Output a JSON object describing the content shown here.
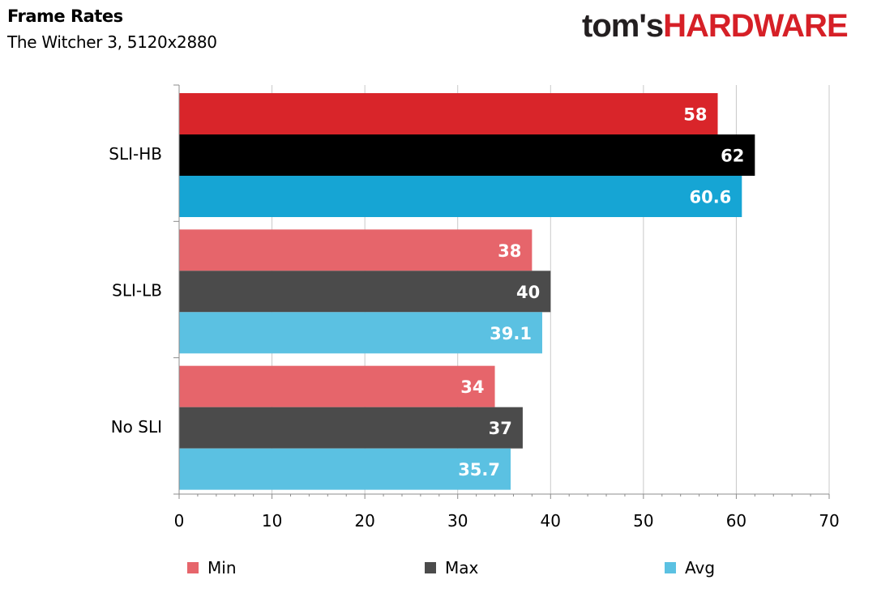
{
  "header": {
    "title": "Frame Rates",
    "subtitle": "The Witcher 3, 5120x2880"
  },
  "logo": {
    "part1": "tom's",
    "part2": "HARDWARE"
  },
  "chart_data": {
    "type": "bar",
    "orientation": "horizontal",
    "categories": [
      "SLI-HB",
      "SLI-LB",
      "No SLI"
    ],
    "series": [
      {
        "name": "Min",
        "values": [
          58,
          38,
          34
        ]
      },
      {
        "name": "Max",
        "values": [
          62,
          40,
          37
        ]
      },
      {
        "name": "Avg",
        "values": [
          60.6,
          39.1,
          35.7
        ]
      }
    ],
    "value_labels": [
      [
        "58",
        "62",
        "60.6"
      ],
      [
        "38",
        "40",
        "39.1"
      ],
      [
        "34",
        "37",
        "35.7"
      ]
    ],
    "xlim": [
      0,
      70
    ],
    "xticks": [
      "0",
      "10",
      "20",
      "30",
      "40",
      "50",
      "60",
      "70"
    ],
    "grid": true,
    "legend": "bottom",
    "colors": {
      "highlight": [
        "#d9252a",
        "#000000",
        "#16a5d4"
      ],
      "normal": [
        "#e6656b",
        "#4b4b4b",
        "#5bc1e2"
      ],
      "grid": "#c9c9c9",
      "axis": "#8c8c8c"
    }
  }
}
